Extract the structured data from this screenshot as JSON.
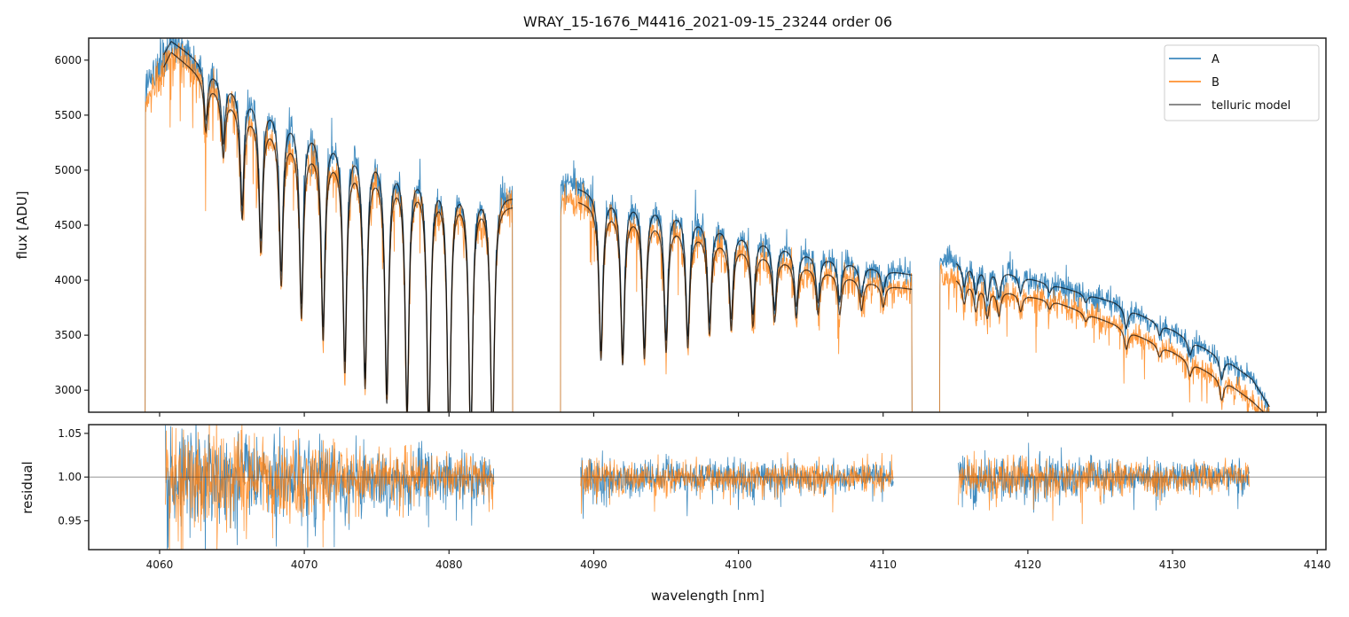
{
  "chart_data": {
    "type": "line",
    "title": "WRAY_15-1676_M4416_2021-09-15_23244  order 06",
    "xlabel": "wavelength [nm]",
    "xlim": [
      4055.1,
      4140.6
    ],
    "x_ticks": [
      4060,
      4070,
      4080,
      4090,
      4100,
      4110,
      4120,
      4130,
      4140
    ],
    "x_tick_labels": [
      "4060",
      "4070",
      "4080",
      "4090",
      "4100",
      "4110",
      "4120",
      "4130",
      "4140"
    ],
    "panels": [
      {
        "name": "flux",
        "ylabel": "flux [ADU]",
        "ylim": [
          2800,
          6200
        ],
        "y_ticks": [
          3000,
          3500,
          4000,
          4500,
          5000,
          5500,
          6000
        ],
        "y_tick_labels": [
          "3000",
          "3500",
          "4000",
          "4500",
          "5000",
          "5500",
          "6000"
        ],
        "legend": {
          "placement": "upper-right",
          "entries": [
            "A",
            "B",
            "telluric model"
          ]
        },
        "segments": [
          {
            "x_range": [
              4059.0,
              4084.4
            ],
            "continuum_A": [
              [
                4059.0,
                5750
              ],
              [
                4060.8,
                6180
              ],
              [
                4065,
                5800
              ],
              [
                4070,
                5450
              ],
              [
                4075,
                5200
              ],
              [
                4080,
                4950
              ],
              [
                4084.4,
                4780
              ]
            ],
            "continuum_B": [
              [
                4059.0,
                5600
              ],
              [
                4060.8,
                6080
              ],
              [
                4065,
                5650
              ],
              [
                4070,
                5250
              ],
              [
                4075,
                5050
              ],
              [
                4080,
                4850
              ],
              [
                4084.4,
                4700
              ]
            ],
            "dips": [
              [
                4063.2,
                0.08
              ],
              [
                4064.4,
                0.1
              ],
              [
                4065.7,
                0.18
              ],
              [
                4067.0,
                0.22
              ],
              [
                4068.4,
                0.26
              ],
              [
                4069.8,
                0.3
              ],
              [
                4071.3,
                0.33
              ],
              [
                4072.8,
                0.38
              ],
              [
                4074.2,
                0.4
              ],
              [
                4075.7,
                0.42
              ],
              [
                4077.1,
                0.44
              ],
              [
                4078.6,
                0.46
              ],
              [
                4080.0,
                0.47
              ],
              [
                4081.5,
                0.48
              ],
              [
                4083.0,
                0.48
              ]
            ]
          },
          {
            "x_range": [
              4087.7,
              4112.0
            ],
            "continuum_A": [
              [
                4087.7,
                4880
              ],
              [
                4090,
                4820
              ],
              [
                4095,
                4700
              ],
              [
                4100,
                4450
              ],
              [
                4105,
                4250
              ],
              [
                4110,
                4100
              ],
              [
                4112.0,
                4050
              ]
            ],
            "continuum_B": [
              [
                4087.7,
                4760
              ],
              [
                4090,
                4700
              ],
              [
                4095,
                4550
              ],
              [
                4100,
                4320
              ],
              [
                4105,
                4130
              ],
              [
                4110,
                3960
              ],
              [
                4112.0,
                3920
              ]
            ],
            "dips": [
              [
                4090.5,
                0.3
              ],
              [
                4092.0,
                0.3
              ],
              [
                4093.5,
                0.28
              ],
              [
                4095.0,
                0.26
              ],
              [
                4096.5,
                0.24
              ],
              [
                4098.0,
                0.2
              ],
              [
                4099.5,
                0.18
              ],
              [
                4101.0,
                0.16
              ],
              [
                4102.5,
                0.14
              ],
              [
                4104.0,
                0.12
              ],
              [
                4105.5,
                0.1
              ],
              [
                4107.0,
                0.09
              ],
              [
                4108.5,
                0.07
              ],
              [
                4110.0,
                0.05
              ]
            ]
          },
          {
            "x_range": [
              4113.9,
              4136.7
            ],
            "continuum_A": [
              [
                4113.9,
                4200
              ],
              [
                4118,
                4100
              ],
              [
                4122,
                3950
              ],
              [
                4126,
                3800
              ],
              [
                4130,
                3550
              ],
              [
                4134,
                3250
              ],
              [
                4135.5,
                3100
              ],
              [
                4136.7,
                2850
              ]
            ],
            "continuum_B": [
              [
                4113.9,
                4050
              ],
              [
                4118,
                3920
              ],
              [
                4122,
                3800
              ],
              [
                4126,
                3600
              ],
              [
                4130,
                3350
              ],
              [
                4134,
                3050
              ],
              [
                4135.5,
                2900
              ],
              [
                4136.7,
                2750
              ]
            ],
            "dips": [
              [
                4115.6,
                0.05
              ],
              [
                4116.4,
                0.06
              ],
              [
                4117.2,
                0.07
              ],
              [
                4118.0,
                0.06
              ],
              [
                4119.5,
                0.04
              ],
              [
                4121.5,
                0.02
              ],
              [
                4124.0,
                0.02
              ],
              [
                4126.8,
                0.05
              ],
              [
                4129.1,
                0.03
              ],
              [
                4131.2,
                0.04
              ],
              [
                4133.4,
                0.06
              ]
            ]
          }
        ],
        "series": [
          {
            "name": "A",
            "color": "#1f77b4",
            "noise": 0.03
          },
          {
            "name": "B",
            "color": "#ff7f0e",
            "noise": 0.035
          },
          {
            "name": "telluric model",
            "color": "#000000"
          }
        ]
      },
      {
        "name": "residual",
        "ylabel": "residual",
        "ylim": [
          0.917,
          1.06
        ],
        "y_ticks": [
          0.95,
          1.0,
          1.05
        ],
        "y_tick_labels": [
          "0.95",
          "1.00",
          "1.05"
        ],
        "reference_line": 1.0,
        "segments": [
          {
            "x_range": [
              4060.4,
              4083.1
            ],
            "noise_start": 0.055,
            "noise_end": 0.02
          },
          {
            "x_range": [
              4089.1,
              4110.7
            ],
            "noise_start": 0.02,
            "noise_end": 0.015
          },
          {
            "x_range": [
              4115.2,
              4135.3
            ],
            "noise_start": 0.022,
            "noise_end": 0.015
          }
        ],
        "series": [
          {
            "name": "A",
            "color": "#1f77b4"
          },
          {
            "name": "B",
            "color": "#ff7f0e"
          }
        ]
      }
    ]
  }
}
